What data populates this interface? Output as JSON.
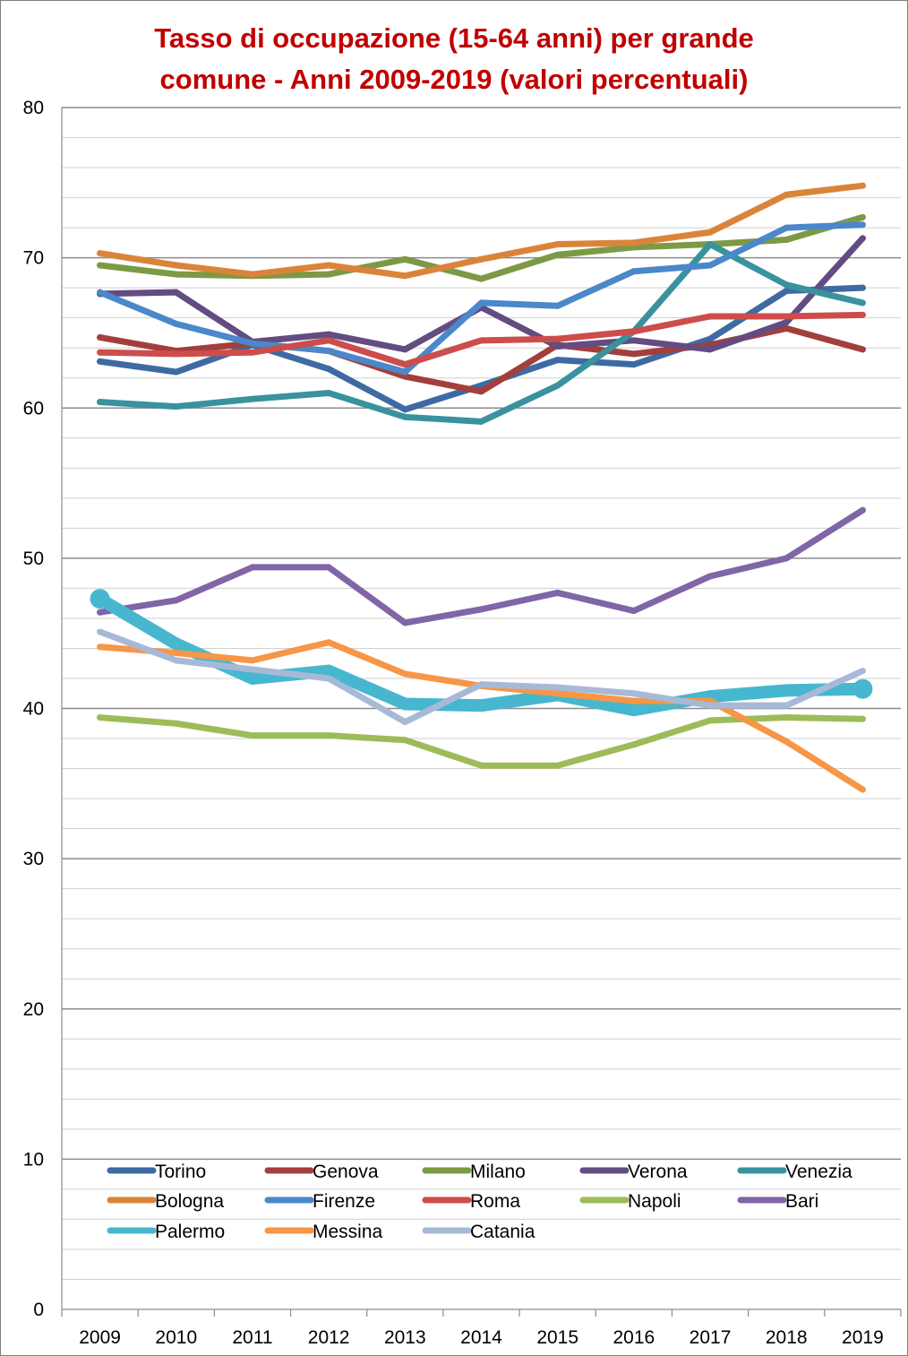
{
  "chart_data": {
    "type": "line",
    "title_lines": [
      "Tasso di occupazione  (15-64 anni) per grande",
      "comune - Anni 2009-2019 (valori percentuali)"
    ],
    "title_color": "#c00000",
    "categories": [
      "2009",
      "2010",
      "2011",
      "2012",
      "2013",
      "2014",
      "2015",
      "2016",
      "2017",
      "2018",
      "2019"
    ],
    "ylim": [
      0,
      80
    ],
    "y_ticks": [
      0,
      10,
      20,
      30,
      40,
      50,
      60,
      70,
      80
    ],
    "xlabel": "",
    "ylabel": "",
    "grid": true,
    "legend_position": "bottom-inside",
    "series": [
      {
        "name": "Torino",
        "color": "#3e6aa3",
        "values": [
          63.1,
          62.4,
          64.2,
          62.6,
          59.9,
          61.5,
          63.2,
          62.9,
          64.6,
          67.8,
          68.0
        ]
      },
      {
        "name": "Genova",
        "color": "#a33f3b",
        "values": [
          64.7,
          63.8,
          64.3,
          63.8,
          62.1,
          61.1,
          64.2,
          63.6,
          64.2,
          65.3,
          63.9
        ]
      },
      {
        "name": "Milano",
        "color": "#7c9a45",
        "values": [
          69.5,
          68.9,
          68.8,
          68.9,
          69.9,
          68.6,
          70.2,
          70.7,
          70.9,
          71.2,
          72.7
        ]
      },
      {
        "name": "Verona",
        "color": "#634c81",
        "values": [
          67.6,
          67.7,
          64.4,
          64.9,
          63.9,
          66.7,
          64.1,
          64.5,
          63.9,
          65.7,
          71.3
        ]
      },
      {
        "name": "Venezia",
        "color": "#39929e",
        "values": [
          60.4,
          60.1,
          60.6,
          61.0,
          59.4,
          59.1,
          61.5,
          65.1,
          70.9,
          68.2,
          67.0
        ]
      },
      {
        "name": "Bologna",
        "color": "#da843a",
        "values": [
          70.3,
          69.5,
          68.9,
          69.5,
          68.8,
          69.9,
          70.9,
          71.0,
          71.7,
          74.2,
          74.8
        ]
      },
      {
        "name": "Firenze",
        "color": "#4b87cb",
        "values": [
          67.7,
          65.6,
          64.3,
          63.8,
          62.4,
          67.0,
          66.8,
          69.1,
          69.5,
          72.0,
          72.2
        ]
      },
      {
        "name": "Roma",
        "color": "#cc4d4c",
        "values": [
          63.7,
          63.6,
          63.7,
          64.5,
          62.9,
          64.5,
          64.6,
          65.1,
          66.1,
          66.1,
          66.2
        ]
      },
      {
        "name": "Napoli",
        "color": "#9cbc59",
        "values": [
          39.4,
          39.0,
          38.2,
          38.2,
          37.9,
          36.2,
          36.2,
          37.6,
          39.2,
          39.4,
          39.3
        ]
      },
      {
        "name": "Bari",
        "color": "#8065a7",
        "values": [
          46.4,
          47.2,
          49.4,
          49.4,
          45.7,
          46.6,
          47.7,
          46.5,
          48.8,
          50.0,
          53.2
        ]
      },
      {
        "name": "Palermo",
        "color": "#47b7cf",
        "values": [
          47.3,
          44.3,
          42.0,
          42.5,
          40.3,
          40.2,
          40.9,
          39.9,
          40.8,
          41.2,
          41.3
        ]
      },
      {
        "name": "Messina",
        "color": "#f69646",
        "values": [
          44.1,
          43.7,
          43.2,
          44.4,
          42.3,
          41.5,
          41.0,
          40.5,
          40.5,
          37.8,
          34.6
        ]
      },
      {
        "name": "Catania",
        "color": "#a8b9d8",
        "values": [
          45.1,
          43.2,
          42.6,
          42.0,
          39.1,
          41.6,
          41.4,
          41.0,
          40.2,
          40.2,
          42.5
        ]
      }
    ]
  }
}
